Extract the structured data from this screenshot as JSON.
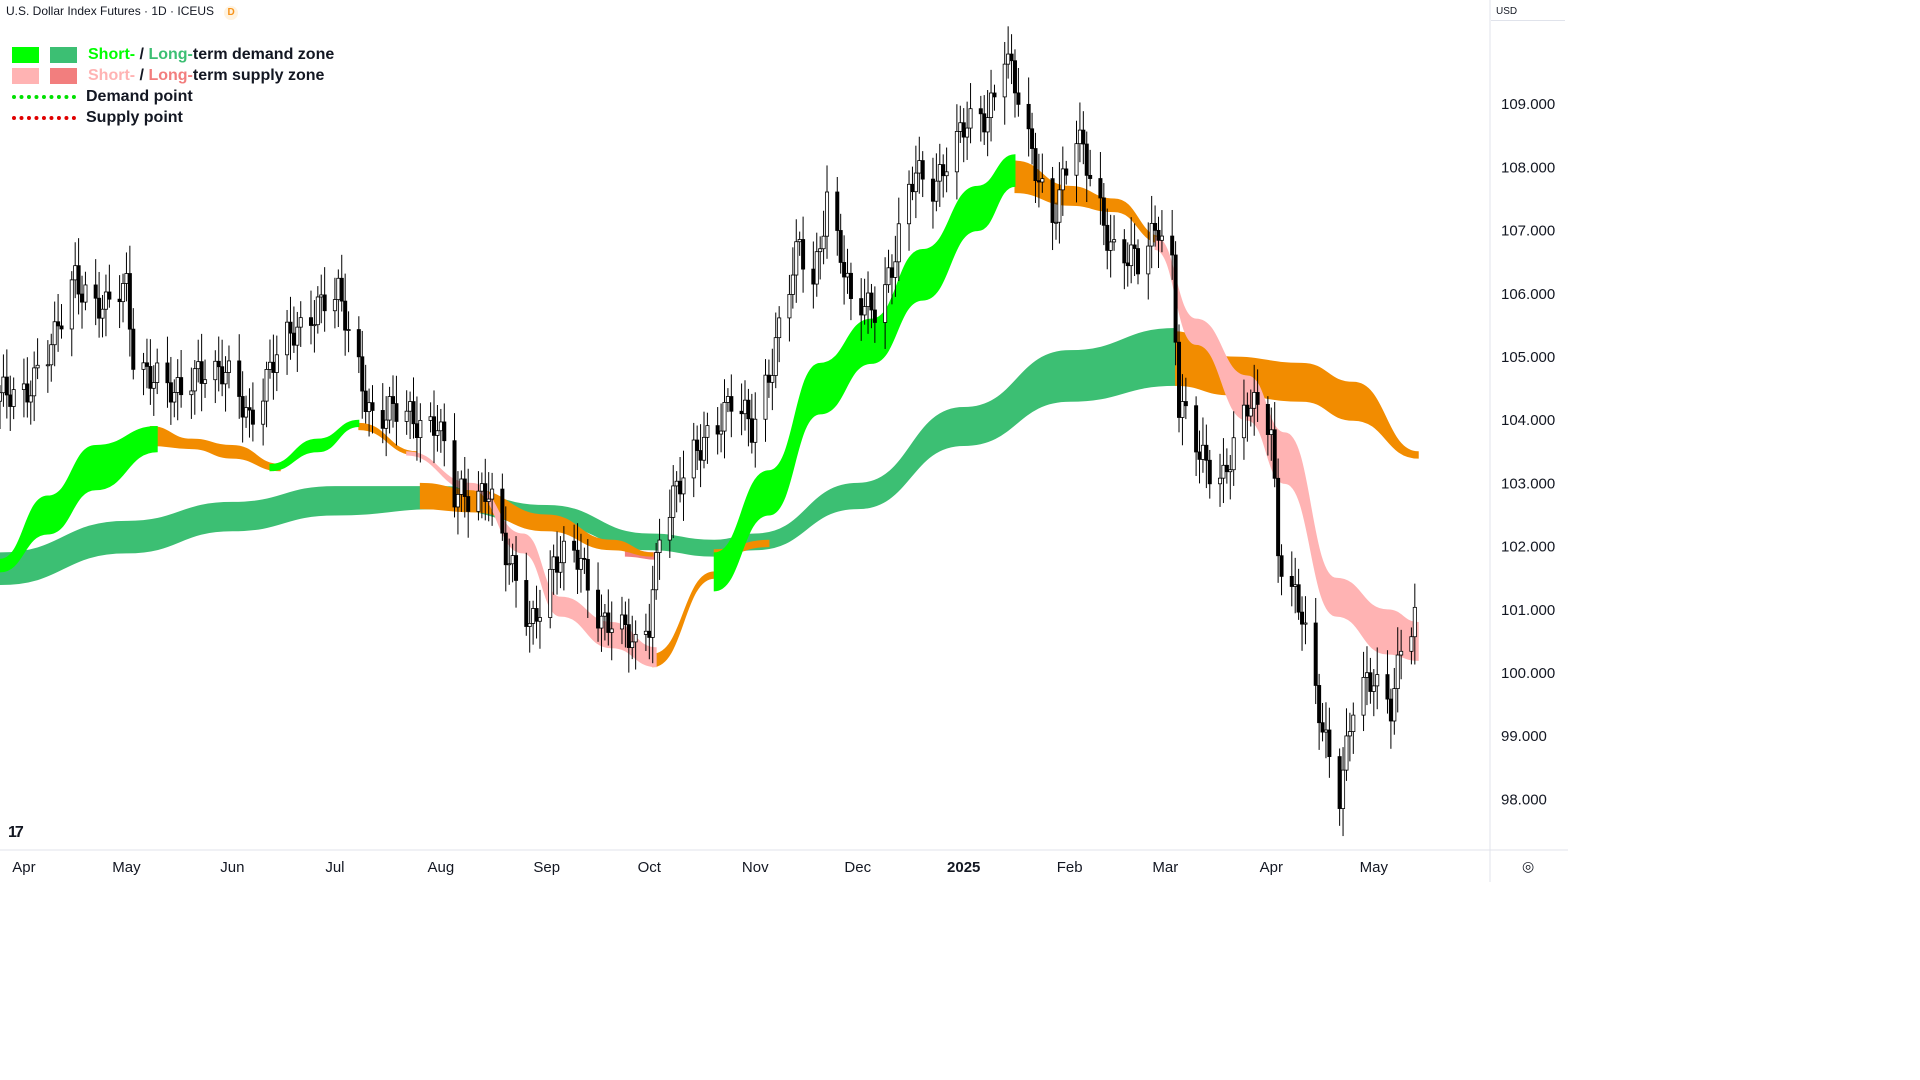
{
  "header": {
    "title": "U.S. Dollar Index Futures · 1D · ICEUS",
    "badge": "D",
    "currency": "USD"
  },
  "legend": {
    "items": [
      {
        "kind": "pair",
        "colors": [
          "#00ff00",
          "#3cbf73"
        ],
        "parts": [
          "Short-",
          " / ",
          "Long-",
          "term demand zone"
        ]
      },
      {
        "kind": "pair",
        "colors": [
          "#ffb3b3",
          "#f27e7e"
        ],
        "parts": [
          "Short-",
          " / ",
          "Long-",
          "term supply zone"
        ]
      },
      {
        "kind": "dots",
        "color": "#00e000",
        "label": "Demand point"
      },
      {
        "kind": "dots",
        "color": "#e00000",
        "label": "Supply point"
      }
    ]
  },
  "colors": {
    "short_demand": "#00ff00",
    "long_demand": "#3cbf73",
    "short_supply": "#ffb3b3",
    "long_supply": "#f27e7e",
    "overlap": "#f28c00",
    "candle": "#000000",
    "axis_text": "#131722"
  },
  "logo": "17",
  "settings_icon": "target-icon",
  "chart_data": {
    "type": "candlestick",
    "title": "U.S. Dollar Index Futures · 1D · ICEUS",
    "ylim": [
      97.2,
      110.3
    ],
    "yticks": [
      98.0,
      99.0,
      100.0,
      101.0,
      102.0,
      103.0,
      104.0,
      105.0,
      106.0,
      107.0,
      108.0,
      109.0
    ],
    "ytick_labels": [
      "98.000",
      "99.000",
      "100.000",
      "101.000",
      "102.000",
      "103.000",
      "104.000",
      "105.000",
      "106.000",
      "107.000",
      "108.000",
      "109.000"
    ],
    "x_labels": [
      "Apr",
      "May",
      "Jun",
      "Jul",
      "Aug",
      "Sep",
      "Oct",
      "Nov",
      "Dec",
      "2025",
      "Feb",
      "Mar",
      "Apr",
      "May"
    ],
    "x_label_dates": [
      "2024-04-01",
      "2024-05-01",
      "2024-06-01",
      "2024-07-01",
      "2024-08-01",
      "2024-09-01",
      "2024-10-01",
      "2024-11-01",
      "2024-12-01",
      "2025-01-01",
      "2025-02-01",
      "2025-03-01",
      "2025-04-01",
      "2025-05-01"
    ],
    "x_range": [
      "2024-03-25",
      "2025-06-04"
    ],
    "grid": false,
    "legend_position": "top-left",
    "close_path": [
      [
        "2024-03-25",
        104.3
      ],
      [
        "2024-04-01",
        104.5
      ],
      [
        "2024-04-10",
        105.2
      ],
      [
        "2024-04-16",
        106.3
      ],
      [
        "2024-04-25",
        105.7
      ],
      [
        "2024-05-01",
        106.1
      ],
      [
        "2024-05-03",
        105.1
      ],
      [
        "2024-05-15",
        104.3
      ],
      [
        "2024-05-22",
        104.9
      ],
      [
        "2024-05-31",
        104.6
      ],
      [
        "2024-06-06",
        104.1
      ],
      [
        "2024-06-12",
        104.8
      ],
      [
        "2024-06-26",
        105.9
      ],
      [
        "2024-07-02",
        105.9
      ],
      [
        "2024-07-12",
        104.1
      ],
      [
        "2024-07-31",
        104.0
      ],
      [
        "2024-08-05",
        102.7
      ],
      [
        "2024-08-15",
        103.0
      ],
      [
        "2024-08-20",
        101.8
      ],
      [
        "2024-08-27",
        100.8
      ],
      [
        "2024-09-03",
        101.7
      ],
      [
        "2024-09-11",
        101.8
      ],
      [
        "2024-09-17",
        100.9
      ],
      [
        "2024-09-27",
        100.4
      ],
      [
        "2024-10-01",
        100.9
      ],
      [
        "2024-10-04",
        102.3
      ],
      [
        "2024-10-10",
        102.9
      ],
      [
        "2024-10-17",
        103.8
      ],
      [
        "2024-10-25",
        104.2
      ],
      [
        "2024-10-31",
        103.9
      ],
      [
        "2024-11-06",
        105.0
      ],
      [
        "2024-11-14",
        106.7
      ],
      [
        "2024-11-18",
        106.2
      ],
      [
        "2024-11-22",
        107.6
      ],
      [
        "2024-11-26",
        106.6
      ],
      [
        "2024-11-29",
        105.7
      ],
      [
        "2024-12-06",
        105.9
      ],
      [
        "2024-12-11",
        106.4
      ],
      [
        "2024-12-18",
        107.9
      ],
      [
        "2024-12-23",
        107.8
      ],
      [
        "2025-01-02",
        108.6
      ],
      [
        "2025-01-08",
        108.9
      ],
      [
        "2025-01-13",
        109.9
      ],
      [
        "2025-01-20",
        108.3
      ],
      [
        "2025-01-27",
        107.3
      ],
      [
        "2025-02-03",
        108.4
      ],
      [
        "2025-02-07",
        107.9
      ],
      [
        "2025-02-14",
        106.7
      ],
      [
        "2025-02-21",
        106.4
      ],
      [
        "2025-02-27",
        107.2
      ],
      [
        "2025-03-03",
        106.5
      ],
      [
        "2025-03-05",
        104.2
      ],
      [
        "2025-03-11",
        103.4
      ],
      [
        "2025-03-18",
        103.2
      ],
      [
        "2025-03-26",
        104.2
      ],
      [
        "2025-04-01",
        104.0
      ],
      [
        "2025-04-03",
        102.0
      ],
      [
        "2025-04-10",
        100.8
      ],
      [
        "2025-04-14",
        99.6
      ],
      [
        "2025-04-21",
        98.2
      ],
      [
        "2025-04-25",
        99.4
      ],
      [
        "2025-05-01",
        99.9
      ],
      [
        "2025-05-06",
        99.6
      ],
      [
        "2025-05-09",
        100.4
      ],
      [
        "2025-05-13",
        100.8
      ]
    ],
    "zones": [
      {
        "name": "Long-term demand zone",
        "color": "#3cbf73",
        "from": "2024-03-25",
        "to": "2025-03-04",
        "upper": [
          [
            "2024-03-25",
            101.9
          ],
          [
            "2024-05-01",
            102.4
          ],
          [
            "2024-06-01",
            102.7
          ],
          [
            "2024-07-01",
            102.95
          ],
          [
            "2024-08-01",
            102.95
          ],
          [
            "2024-09-01",
            102.65
          ],
          [
            "2024-10-01",
            102.2
          ],
          [
            "2024-10-20",
            102.1
          ],
          [
            "2024-11-01",
            102.2
          ],
          [
            "2024-12-01",
            103.0
          ],
          [
            "2025-01-01",
            104.2
          ],
          [
            "2025-02-01",
            105.1
          ],
          [
            "2025-03-04",
            105.45
          ]
        ],
        "lower": [
          [
            "2024-03-25",
            101.4
          ],
          [
            "2024-05-01",
            101.9
          ],
          [
            "2024-06-01",
            102.25
          ],
          [
            "2024-07-01",
            102.5
          ],
          [
            "2024-08-01",
            102.6
          ],
          [
            "2024-09-01",
            102.35
          ],
          [
            "2024-10-01",
            101.95
          ],
          [
            "2024-10-20",
            101.85
          ],
          [
            "2024-11-01",
            101.95
          ],
          [
            "2024-12-01",
            102.6
          ],
          [
            "2025-01-01",
            103.6
          ],
          [
            "2025-02-01",
            104.3
          ],
          [
            "2025-03-04",
            104.55
          ]
        ]
      },
      {
        "name": "Long-term supply zone",
        "color": "#f27e7e",
        "from": "2024-09-24",
        "to": "2024-10-03",
        "upper": [
          [
            "2024-09-24",
            101.95
          ],
          [
            "2024-10-03",
            101.9
          ]
        ],
        "lower": [
          [
            "2024-09-24",
            101.85
          ],
          [
            "2024-10-03",
            101.8
          ]
        ]
      },
      {
        "name": "Overlap zone",
        "color": "#f28c00",
        "from": "2024-05-08",
        "to": "2024-06-15",
        "upper": [
          [
            "2024-05-08",
            103.9
          ],
          [
            "2024-05-20",
            103.7
          ],
          [
            "2024-06-01",
            103.6
          ],
          [
            "2024-06-15",
            103.3
          ]
        ],
        "lower": [
          [
            "2024-05-08",
            103.6
          ],
          [
            "2024-05-20",
            103.55
          ],
          [
            "2024-06-01",
            103.4
          ],
          [
            "2024-06-15",
            103.2
          ]
        ]
      },
      {
        "name": "Overlap zone",
        "color": "#f28c00",
        "from": "2024-07-08",
        "to": "2024-07-25",
        "upper": [
          [
            "2024-07-08",
            103.95
          ],
          [
            "2024-07-25",
            103.5
          ]
        ],
        "lower": [
          [
            "2024-07-08",
            103.85
          ],
          [
            "2024-07-25",
            103.45
          ]
        ]
      },
      {
        "name": "Overlap zone",
        "color": "#f28c00",
        "from": "2024-07-26",
        "to": "2024-10-02",
        "upper": [
          [
            "2024-07-26",
            103.0
          ],
          [
            "2024-08-10",
            102.9
          ],
          [
            "2024-09-01",
            102.5
          ],
          [
            "2024-09-20",
            102.1
          ],
          [
            "2024-10-02",
            101.9
          ]
        ],
        "lower": [
          [
            "2024-07-26",
            102.6
          ],
          [
            "2024-08-10",
            102.55
          ],
          [
            "2024-09-01",
            102.25
          ],
          [
            "2024-09-20",
            101.95
          ],
          [
            "2024-10-02",
            101.85
          ]
        ]
      },
      {
        "name": "Overlap zone",
        "color": "#f28c00",
        "from": "2024-10-02",
        "to": "2024-10-20",
        "upper": [
          [
            "2024-10-02",
            100.3
          ],
          [
            "2024-10-20",
            101.6
          ]
        ],
        "lower": [
          [
            "2024-10-02",
            100.1
          ],
          [
            "2024-10-20",
            101.5
          ]
        ]
      },
      {
        "name": "Overlap zone",
        "color": "#f28c00",
        "from": "2024-10-20",
        "to": "2024-11-05",
        "upper": [
          [
            "2024-10-20",
            101.95
          ],
          [
            "2024-11-05",
            102.1
          ]
        ],
        "lower": [
          [
            "2024-10-20",
            101.85
          ],
          [
            "2024-11-05",
            102.0
          ]
        ]
      },
      {
        "name": "Overlap zone",
        "color": "#f28c00",
        "from": "2025-01-16",
        "to": "2025-02-28",
        "upper": [
          [
            "2025-01-16",
            108.1
          ],
          [
            "2025-02-01",
            107.7
          ],
          [
            "2025-02-14",
            107.5
          ],
          [
            "2025-02-28",
            106.9
          ]
        ],
        "lower": [
          [
            "2025-01-16",
            107.6
          ],
          [
            "2025-02-01",
            107.4
          ],
          [
            "2025-02-14",
            107.3
          ],
          [
            "2025-02-28",
            106.8
          ]
        ]
      },
      {
        "name": "Overlap zone",
        "color": "#f28c00",
        "from": "2025-03-04",
        "to": "2025-05-14",
        "upper": [
          [
            "2025-03-04",
            105.4
          ],
          [
            "2025-03-20",
            105.0
          ],
          [
            "2025-04-10",
            104.9
          ],
          [
            "2025-04-25",
            104.6
          ],
          [
            "2025-05-14",
            103.5
          ]
        ],
        "lower": [
          [
            "2025-03-04",
            104.55
          ],
          [
            "2025-03-20",
            104.4
          ],
          [
            "2025-04-10",
            104.3
          ],
          [
            "2025-04-25",
            104.0
          ],
          [
            "2025-05-14",
            103.4
          ]
        ]
      },
      {
        "name": "Short-term demand zone",
        "color": "#00ff00",
        "from": "2024-03-25",
        "to": "2024-05-10",
        "upper": [
          [
            "2024-03-25",
            101.8
          ],
          [
            "2024-04-08",
            102.8
          ],
          [
            "2024-04-22",
            103.6
          ],
          [
            "2024-05-10",
            103.9
          ]
        ],
        "lower": [
          [
            "2024-03-25",
            101.6
          ],
          [
            "2024-04-08",
            102.2
          ],
          [
            "2024-04-22",
            102.9
          ],
          [
            "2024-05-10",
            103.5
          ]
        ]
      },
      {
        "name": "Short-term demand zone",
        "color": "#00ff00",
        "from": "2024-06-12",
        "to": "2024-07-08",
        "upper": [
          [
            "2024-06-12",
            103.3
          ],
          [
            "2024-06-26",
            103.7
          ],
          [
            "2024-07-08",
            104.0
          ]
        ],
        "lower": [
          [
            "2024-06-12",
            103.2
          ],
          [
            "2024-06-26",
            103.5
          ],
          [
            "2024-07-08",
            103.9
          ]
        ]
      },
      {
        "name": "Short-term supply zone",
        "color": "#ffb3b3",
        "from": "2024-07-22",
        "to": "2024-10-03",
        "upper": [
          [
            "2024-07-22",
            103.5
          ],
          [
            "2024-08-10",
            103.0
          ],
          [
            "2024-08-25",
            102.2
          ],
          [
            "2024-09-05",
            101.2
          ],
          [
            "2024-09-20",
            100.8
          ],
          [
            "2024-10-03",
            100.4
          ]
        ],
        "lower": [
          [
            "2024-07-22",
            103.45
          ],
          [
            "2024-08-10",
            102.9
          ],
          [
            "2024-08-25",
            101.9
          ],
          [
            "2024-09-05",
            100.9
          ],
          [
            "2024-09-20",
            100.4
          ],
          [
            "2024-10-03",
            100.1
          ]
        ]
      },
      {
        "name": "Short-term demand zone",
        "color": "#00ff00",
        "from": "2024-10-20",
        "to": "2025-01-16",
        "upper": [
          [
            "2024-10-20",
            101.9
          ],
          [
            "2024-11-05",
            103.2
          ],
          [
            "2024-11-20",
            104.9
          ],
          [
            "2024-12-05",
            105.6
          ],
          [
            "2024-12-20",
            106.7
          ],
          [
            "2025-01-05",
            107.7
          ],
          [
            "2025-01-16",
            108.2
          ]
        ],
        "lower": [
          [
            "2024-10-20",
            101.3
          ],
          [
            "2024-11-05",
            102.5
          ],
          [
            "2024-11-20",
            104.1
          ],
          [
            "2024-12-05",
            104.9
          ],
          [
            "2024-12-20",
            105.9
          ],
          [
            "2025-01-05",
            107.0
          ],
          [
            "2025-01-16",
            107.7
          ]
        ]
      },
      {
        "name": "Short-term supply zone",
        "color": "#ffb3b3",
        "from": "2025-02-26",
        "to": "2025-05-14",
        "upper": [
          [
            "2025-02-26",
            106.9
          ],
          [
            "2025-03-10",
            105.6
          ],
          [
            "2025-03-25",
            104.7
          ],
          [
            "2025-04-05",
            103.8
          ],
          [
            "2025-04-20",
            101.5
          ],
          [
            "2025-05-05",
            101.0
          ],
          [
            "2025-05-14",
            100.8
          ]
        ],
        "lower": [
          [
            "2025-02-26",
            106.7
          ],
          [
            "2025-03-10",
            105.2
          ],
          [
            "2025-03-25",
            104.0
          ],
          [
            "2025-04-05",
            103.0
          ],
          [
            "2025-04-20",
            100.9
          ],
          [
            "2025-05-05",
            100.3
          ],
          [
            "2025-05-14",
            100.2
          ]
        ]
      }
    ]
  }
}
